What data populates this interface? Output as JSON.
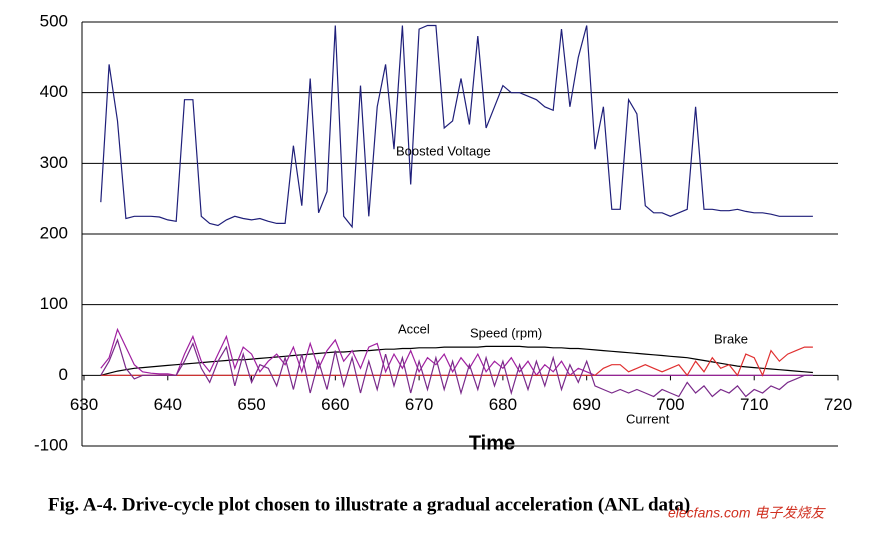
{
  "chart_data": {
    "type": "line",
    "x_label": "Time",
    "caption": "Fig. A-4. Drive-cycle plot chosen to illustrate a gradual acceleration (ANL data)",
    "watermark": "elecfans.com 电子发烧友",
    "xlim": [
      630,
      720
    ],
    "xticks": [
      630,
      640,
      650,
      660,
      670,
      680,
      690,
      700,
      710,
      720
    ],
    "ylim": [
      -100,
      500
    ],
    "yticks": [
      -100,
      0,
      100,
      200,
      300,
      400,
      500
    ],
    "grid": true,
    "x": [
      632,
      633,
      634,
      635,
      636,
      637,
      638,
      639,
      640,
      641,
      642,
      643,
      644,
      645,
      646,
      647,
      648,
      649,
      650,
      651,
      652,
      653,
      654,
      655,
      656,
      657,
      658,
      659,
      660,
      661,
      662,
      663,
      664,
      665,
      666,
      667,
      668,
      669,
      670,
      671,
      672,
      673,
      674,
      675,
      676,
      677,
      678,
      679,
      680,
      681,
      682,
      683,
      684,
      685,
      686,
      687,
      688,
      689,
      690,
      691,
      692,
      693,
      694,
      695,
      696,
      697,
      698,
      699,
      700,
      701,
      702,
      703,
      704,
      705,
      706,
      707,
      708,
      709,
      710,
      711,
      712,
      713,
      714,
      715,
      716,
      717
    ],
    "series": [
      {
        "name": "Boosted Voltage",
        "color": "#1f1f7a",
        "values": [
          245,
          440,
          360,
          222,
          225,
          225,
          225,
          224,
          220,
          218,
          390,
          390,
          225,
          215,
          212,
          220,
          225,
          222,
          220,
          222,
          218,
          215,
          215,
          325,
          240,
          420,
          230,
          260,
          495,
          225,
          210,
          410,
          225,
          380,
          440,
          320,
          495,
          270,
          490,
          495,
          495,
          350,
          360,
          420,
          355,
          480,
          350,
          380,
          410,
          400,
          400,
          395,
          390,
          380,
          375,
          490,
          380,
          450,
          495,
          320,
          380,
          235,
          235,
          390,
          370,
          240,
          230,
          230,
          225,
          230,
          235,
          380,
          235,
          235,
          233,
          233,
          235,
          232,
          230,
          230,
          228,
          225,
          225,
          225,
          225,
          225
        ]
      },
      {
        "name": "Speed (rpm)",
        "color": "#000000",
        "values": [
          0,
          3,
          6,
          8,
          10,
          11,
          12,
          13,
          14,
          15,
          16,
          17,
          18,
          19,
          20,
          21,
          22,
          22,
          23,
          24,
          25,
          26,
          27,
          28,
          29,
          30,
          31,
          32,
          33,
          33,
          34,
          35,
          35,
          36,
          37,
          37,
          38,
          38,
          39,
          39,
          39,
          40,
          40,
          40,
          40,
          40,
          41,
          41,
          41,
          41,
          41,
          40,
          40,
          40,
          39,
          39,
          38,
          38,
          37,
          36,
          35,
          34,
          33,
          32,
          31,
          30,
          29,
          28,
          27,
          26,
          25,
          23,
          21,
          19,
          17,
          15,
          13,
          12,
          11,
          10,
          9,
          8,
          7,
          6,
          5,
          4
        ]
      },
      {
        "name": "Accel",
        "color": "#a020a0",
        "values": [
          10,
          25,
          65,
          40,
          15,
          5,
          3,
          2,
          2,
          0,
          30,
          55,
          20,
          5,
          30,
          55,
          10,
          40,
          30,
          5,
          20,
          30,
          15,
          40,
          5,
          45,
          10,
          35,
          50,
          20,
          35,
          10,
          40,
          45,
          5,
          30,
          10,
          35,
          5,
          25,
          15,
          30,
          5,
          25,
          10,
          30,
          5,
          20,
          10,
          25,
          5,
          20,
          0,
          15,
          5,
          20,
          0,
          10,
          5,
          0,
          0,
          0,
          0,
          0,
          0,
          0,
          0,
          0,
          0,
          0,
          0,
          0,
          0,
          0,
          0,
          0,
          0,
          0,
          0,
          0,
          0,
          0,
          0,
          0,
          0,
          0
        ]
      },
      {
        "name": "Brake",
        "color": "#e03030",
        "values": [
          0,
          0,
          0,
          0,
          0,
          0,
          0,
          0,
          0,
          0,
          0,
          0,
          0,
          0,
          0,
          0,
          0,
          0,
          0,
          0,
          0,
          0,
          0,
          0,
          0,
          0,
          0,
          0,
          0,
          0,
          0,
          0,
          0,
          0,
          0,
          0,
          0,
          0,
          0,
          0,
          0,
          0,
          0,
          0,
          0,
          0,
          0,
          0,
          0,
          0,
          0,
          0,
          0,
          0,
          0,
          0,
          0,
          0,
          0,
          0,
          10,
          15,
          15,
          5,
          10,
          15,
          10,
          5,
          10,
          15,
          0,
          20,
          5,
          25,
          10,
          15,
          0,
          30,
          25,
          0,
          35,
          20,
          30,
          35,
          40,
          40
        ]
      },
      {
        "name": "Current",
        "color": "#7a2a8a",
        "values": [
          0,
          20,
          50,
          10,
          -5,
          0,
          0,
          0,
          0,
          0,
          20,
          45,
          10,
          -10,
          20,
          40,
          -15,
          30,
          -10,
          15,
          10,
          -15,
          25,
          -20,
          30,
          -25,
          20,
          -20,
          35,
          -15,
          25,
          -25,
          20,
          -20,
          30,
          -15,
          25,
          -25,
          20,
          -20,
          25,
          -20,
          20,
          -25,
          15,
          -20,
          25,
          -15,
          20,
          -25,
          15,
          -20,
          20,
          -15,
          25,
          -20,
          15,
          -10,
          20,
          -15,
          -20,
          -25,
          -20,
          -25,
          -20,
          -25,
          -30,
          -20,
          -25,
          -30,
          -10,
          -25,
          -15,
          -30,
          -20,
          -25,
          -15,
          -30,
          -20,
          -25,
          -15,
          -20,
          -10,
          -5,
          0,
          0
        ]
      }
    ]
  }
}
